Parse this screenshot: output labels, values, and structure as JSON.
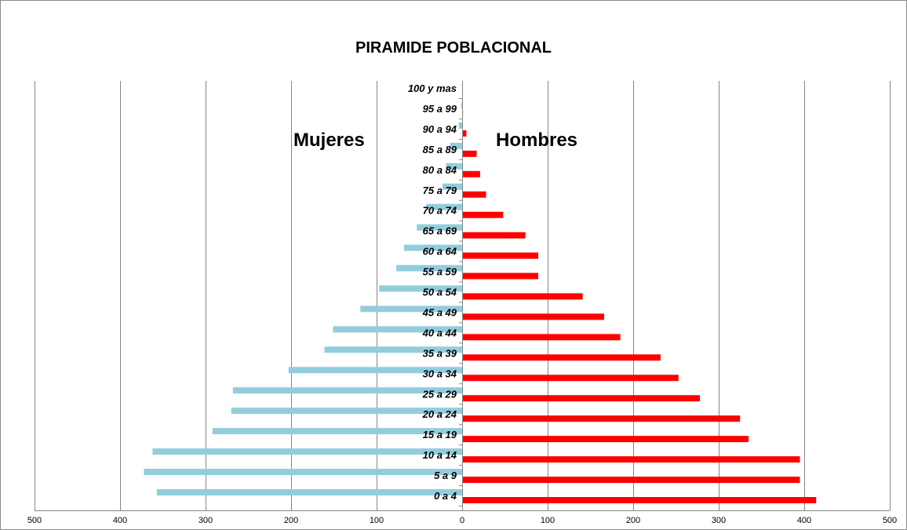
{
  "chart_data": {
    "type": "bar",
    "orientation": "horizontal",
    "title": "PIRAMIDE POBLACIONAL",
    "categories": [
      "0 a 4",
      "5 a 9",
      "10 a 14",
      "15 a 19",
      "20 a 24",
      "25 a 29",
      "30 a 34",
      "35 a 39",
      "40 a 44",
      "45 a 49",
      "50 a 54",
      "55 a 59",
      "60 a 64",
      "65 a 69",
      "70 a 74",
      "75 a 79",
      "80 a 84",
      "85 a 89",
      "90 a 94",
      "95 a 99",
      "100 y mas"
    ],
    "series": [
      {
        "name": "Mujeres",
        "color": "#92cddc",
        "values": [
          357,
          372,
          362,
          292,
          270,
          268,
          203,
          161,
          151,
          119,
          97,
          77,
          68,
          53,
          42,
          23,
          19,
          14,
          4,
          1,
          0
        ]
      },
      {
        "name": "Hombres",
        "color": "#ff0000",
        "values": [
          414,
          395,
          395,
          335,
          325,
          278,
          253,
          232,
          185,
          166,
          141,
          89,
          89,
          74,
          48,
          28,
          21,
          17,
          5,
          1,
          0
        ]
      }
    ],
    "xlim": [
      -500,
      500
    ],
    "x_ticks": [
      -500,
      -400,
      -300,
      -200,
      -100,
      0,
      100,
      200,
      300,
      400,
      500
    ],
    "x_tick_labels": [
      "500",
      "400",
      "300",
      "200",
      "100",
      "0",
      "100",
      "200",
      "300",
      "400",
      "500"
    ],
    "grid": "vertical",
    "side_labels": {
      "left": "Mujeres",
      "right": "Hombres"
    }
  }
}
